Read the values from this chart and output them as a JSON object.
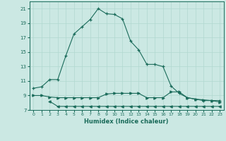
{
  "xlabel": "Humidex (Indice chaleur)",
  "background_color": "#cbe8e3",
  "grid_color": "#b0d8d0",
  "line_color": "#1a6b5a",
  "xlim": [
    -0.5,
    23.5
  ],
  "ylim": [
    7,
    22
  ],
  "yticks": [
    7,
    9,
    11,
    13,
    15,
    17,
    19,
    21
  ],
  "xticks": [
    0,
    1,
    2,
    3,
    4,
    5,
    6,
    7,
    8,
    9,
    10,
    11,
    12,
    13,
    14,
    15,
    16,
    17,
    18,
    19,
    20,
    21,
    22,
    23
  ],
  "line1_x": [
    0,
    1,
    2,
    3,
    4,
    5,
    6,
    7,
    8,
    9,
    10,
    11,
    12,
    13,
    14,
    15,
    16,
    17,
    18,
    19,
    20,
    21,
    22,
    23
  ],
  "line1_y": [
    10.0,
    10.2,
    11.2,
    11.2,
    14.5,
    17.5,
    18.5,
    19.5,
    21.0,
    20.3,
    20.2,
    19.6,
    16.5,
    15.3,
    13.3,
    13.3,
    13.0,
    10.3,
    9.3,
    8.7,
    8.5,
    8.3,
    8.3,
    8.3
  ],
  "line2_x": [
    0,
    1,
    2,
    3,
    4,
    5,
    6,
    7,
    8,
    9,
    10,
    11,
    12,
    13,
    14,
    15,
    16,
    17,
    18,
    19,
    20,
    21,
    22,
    23
  ],
  "line2_y": [
    9.0,
    9.0,
    8.8,
    8.7,
    8.7,
    8.7,
    8.7,
    8.7,
    8.7,
    9.2,
    9.3,
    9.3,
    9.3,
    9.3,
    8.7,
    8.7,
    8.7,
    9.5,
    9.5,
    8.7,
    8.5,
    8.4,
    8.3,
    8.1
  ],
  "line3_x": [
    2,
    3,
    4,
    5,
    6,
    7,
    8,
    9,
    10,
    11,
    12,
    13,
    14,
    15,
    16,
    17,
    18,
    19,
    20,
    21,
    22,
    23
  ],
  "line3_y": [
    8.2,
    7.5,
    7.5,
    7.5,
    7.5,
    7.5,
    7.5,
    7.5,
    7.5,
    7.5,
    7.5,
    7.5,
    7.5,
    7.5,
    7.5,
    7.5,
    7.5,
    7.5,
    7.5,
    7.5,
    7.5,
    7.5
  ]
}
